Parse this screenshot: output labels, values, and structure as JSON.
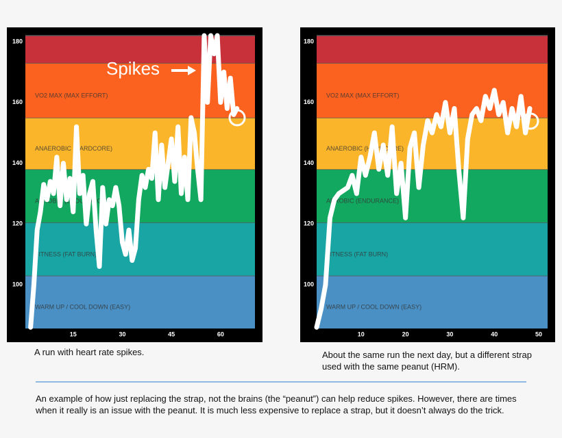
{
  "chart_data": [
    {
      "type": "line",
      "caption": "A run with heart rate spikes.",
      "annotation": "Spikes",
      "xlim": [
        0.4,
        70.5
      ],
      "ylim": [
        85.6,
        182
      ],
      "xticks": [
        15,
        30,
        45,
        60
      ],
      "yticks": [
        100,
        120,
        140,
        160,
        180
      ],
      "bands": [
        {
          "label": "WARM UP / COOL DOWN (EASY)",
          "from": 85.6,
          "to": 103,
          "color": "#4a90c4"
        },
        {
          "label": "FITNESS (FAT BURN)",
          "from": 103,
          "to": 120.5,
          "color": "#1aa5a5"
        },
        {
          "label": "AEROBIC (ENDURANCE)",
          "from": 120.5,
          "to": 138,
          "color": "#12a860"
        },
        {
          "label": "ANAEROBIC (HARDCORE)",
          "from": 138,
          "to": 155,
          "color": "#fab52a"
        },
        {
          "label": "VO2 MAX (MAX EFFORT)",
          "from": 155,
          "to": 173,
          "color": "#fb6220"
        },
        {
          "label": null,
          "from": 173,
          "to": 182,
          "color": "#c8303a"
        }
      ],
      "color": "#ffffff",
      "x": [
        2,
        3,
        4,
        5,
        6,
        7,
        8,
        9,
        10,
        11,
        12,
        13,
        14,
        15,
        16,
        17,
        18,
        19,
        20,
        21,
        22,
        23,
        24,
        25,
        26,
        27,
        28,
        29,
        30,
        31,
        32,
        33,
        34,
        35,
        36,
        37,
        38,
        39,
        40,
        41,
        42,
        43,
        44,
        45,
        46,
        47,
        48,
        49,
        50,
        51,
        52,
        53,
        54,
        55,
        56,
        57,
        58,
        59,
        60,
        61,
        62,
        63,
        64,
        65
      ],
      "values": [
        86,
        100,
        118,
        124,
        133,
        128,
        134,
        130,
        142,
        126,
        140,
        128,
        135,
        124,
        152,
        130,
        136,
        120,
        130,
        134,
        118,
        106,
        132,
        120,
        128,
        126,
        132,
        126,
        114,
        110,
        118,
        108,
        112,
        128,
        136,
        132,
        138,
        135,
        150,
        128,
        146,
        132,
        140,
        148,
        134,
        152,
        130,
        142,
        128,
        155,
        150,
        138,
        128,
        182,
        160,
        182,
        176,
        182,
        160,
        170,
        158,
        168,
        156,
        158
      ]
    },
    {
      "type": "line",
      "caption": "About the same run the next day, but a different strap used with the same peanut (HRM).",
      "xlim": [
        0,
        52
      ],
      "ylim": [
        85.6,
        182
      ],
      "xticks": [
        10,
        20,
        30,
        40,
        50
      ],
      "yticks": [
        100,
        120,
        140,
        160,
        180
      ],
      "bands": [
        {
          "label": "WARM UP / COOL DOWN (EASY)",
          "from": 85.6,
          "to": 103,
          "color": "#4a90c4"
        },
        {
          "label": "FITNESS (FAT BURN)",
          "from": 103,
          "to": 120.5,
          "color": "#1aa5a5"
        },
        {
          "label": "AEROBIC (ENDURANCE)",
          "from": 120.5,
          "to": 138,
          "color": "#12a860"
        },
        {
          "label": "ANAEROBIC (HARDCORE)",
          "from": 138,
          "to": 155,
          "color": "#fab52a"
        },
        {
          "label": "VO2 MAX (MAX EFFORT)",
          "from": 155,
          "to": 173,
          "color": "#fb6220"
        },
        {
          "label": null,
          "from": 173,
          "to": 182,
          "color": "#c8303a"
        }
      ],
      "color": "#ffffff",
      "x": [
        0,
        1,
        2,
        3,
        4,
        5,
        6,
        7,
        8,
        9,
        10,
        11,
        12,
        13,
        14,
        15,
        16,
        17,
        18,
        19,
        20,
        21,
        22,
        23,
        24,
        25,
        26,
        27,
        28,
        29,
        30,
        31,
        32,
        33,
        34,
        35,
        36,
        37,
        38,
        39,
        40,
        41,
        42,
        43,
        44,
        45,
        46,
        47,
        48
      ],
      "values": [
        86,
        92,
        100,
        122,
        128,
        130,
        131,
        132,
        136,
        130,
        142,
        136,
        142,
        150,
        138,
        146,
        136,
        152,
        130,
        140,
        122,
        145,
        150,
        132,
        146,
        154,
        150,
        156,
        152,
        160,
        150,
        158,
        138,
        122,
        148,
        156,
        158,
        154,
        162,
        158,
        164,
        156,
        160,
        150,
        158,
        152,
        162,
        150,
        158
      ]
    }
  ],
  "note": "An example of how just replacing the strap, not the brains (the “peanut”) can help reduce spikes. However, there are times when it really is an issue with the peanut. It is much less expensive to replace a strap, but it doesn’t always do the trick."
}
